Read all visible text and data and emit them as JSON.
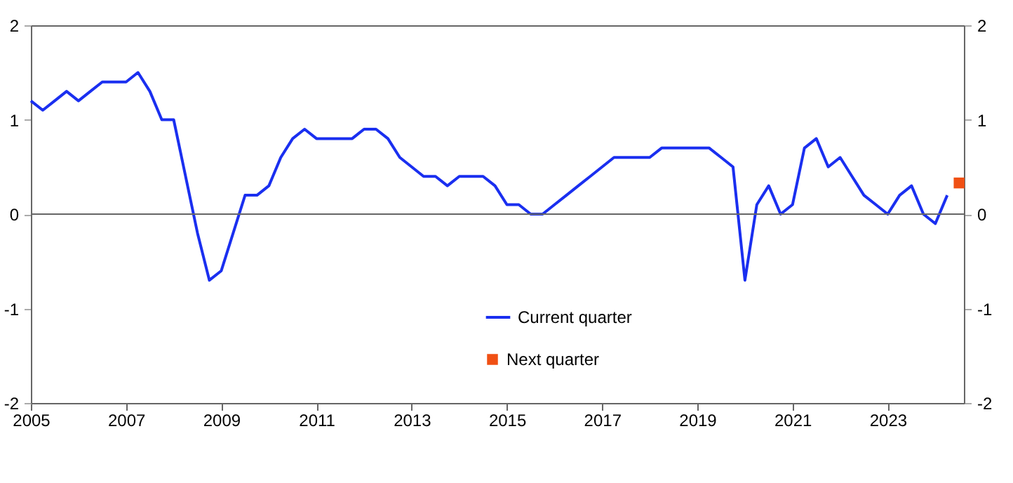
{
  "chart_data": {
    "type": "line",
    "xlim": [
      2005,
      2024.6
    ],
    "xticks": [
      2005,
      2007,
      2009,
      2011,
      2013,
      2015,
      2017,
      2019,
      2021,
      2023
    ],
    "ylim": [
      -2,
      2
    ],
    "yticks": [
      -2,
      -1,
      0,
      1,
      2
    ],
    "y2lim": [
      -2,
      2
    ],
    "y2ticks": [
      -2,
      -1,
      0,
      1,
      2
    ],
    "legend": "bottom",
    "ref_lines": [
      {
        "axis": "y",
        "value": 0,
        "color": "#666666"
      }
    ],
    "series": [
      {
        "name": "Current quarter",
        "type": "line",
        "color": "#1a2ff0",
        "x": [
          2005,
          2005.25,
          2005.5,
          2005.75,
          2006,
          2006.25,
          2006.5,
          2006.75,
          2007,
          2007.25,
          2007.5,
          2007.75,
          2008,
          2008.25,
          2008.5,
          2008.75,
          2009,
          2009.25,
          2009.5,
          2009.75,
          2010,
          2010.25,
          2010.5,
          2010.75,
          2011,
          2011.25,
          2011.5,
          2011.75,
          2012,
          2012.25,
          2012.5,
          2012.75,
          2013,
          2013.25,
          2013.5,
          2013.75,
          2014,
          2014.25,
          2014.5,
          2014.75,
          2015,
          2015.25,
          2015.5,
          2015.75,
          2016,
          2016.25,
          2016.5,
          2016.75,
          2017,
          2017.25,
          2017.5,
          2017.75,
          2018,
          2018.25,
          2018.5,
          2018.75,
          2019,
          2019.25,
          2019.5,
          2019.75,
          2020,
          2020.25,
          2020.5,
          2020.75,
          2021,
          2021.25,
          2021.5,
          2021.75,
          2022,
          2022.25,
          2022.5,
          2022.75,
          2023,
          2023.25,
          2023.5,
          2023.75,
          2024,
          2024.25
        ],
        "values": [
          1.2,
          1.1,
          1.2,
          1.3,
          1.2,
          1.3,
          1.4,
          1.4,
          1.4,
          1.5,
          1.3,
          1.0,
          1.0,
          0.4,
          -0.2,
          -0.7,
          -0.6,
          -0.2,
          0.2,
          0.2,
          0.3,
          0.6,
          0.8,
          0.9,
          0.8,
          0.8,
          0.8,
          0.8,
          0.9,
          0.9,
          0.8,
          0.6,
          0.5,
          0.4,
          0.4,
          0.3,
          0.4,
          0.4,
          0.4,
          0.3,
          0.1,
          0.1,
          0.0,
          0.0,
          0.1,
          0.2,
          0.3,
          0.4,
          0.5,
          0.6,
          0.6,
          0.6,
          0.6,
          0.7,
          0.7,
          0.7,
          0.7,
          0.7,
          0.6,
          0.5,
          -0.7,
          0.1,
          0.3,
          0.0,
          0.1,
          0.7,
          0.8,
          0.5,
          0.6,
          0.4,
          0.2,
          0.1,
          0.0,
          0.2,
          0.3,
          0.0,
          -0.1,
          0.2
        ]
      },
      {
        "name": "Next quarter",
        "type": "scatter",
        "marker": "square",
        "color": "#f05014",
        "x": [
          2024.5
        ],
        "values": [
          0.33
        ]
      }
    ]
  }
}
